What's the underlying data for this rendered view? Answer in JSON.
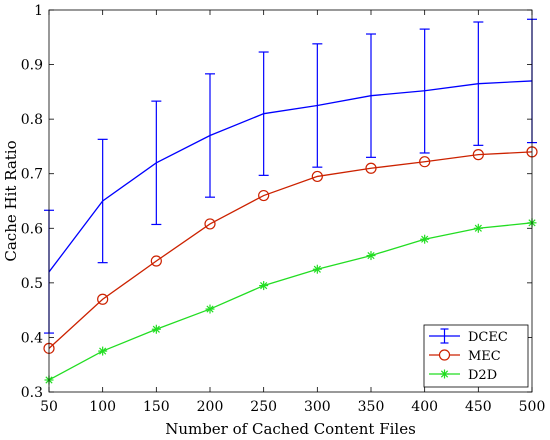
{
  "chart_data": {
    "type": "line",
    "xlabel": "Number of Cached Content Files",
    "ylabel": "Cache Hit Ratio",
    "x": [
      50,
      100,
      150,
      200,
      250,
      300,
      350,
      400,
      450,
      500
    ],
    "xlim": [
      50,
      500
    ],
    "ylim": [
      0.3,
      1.0
    ],
    "xticks": [
      "50",
      "100",
      "150",
      "200",
      "250",
      "300",
      "350",
      "400",
      "450",
      "500"
    ],
    "yticks": [
      "0.3",
      "0.4",
      "0.5",
      "0.6",
      "0.7",
      "0.8",
      "0.9",
      "1"
    ],
    "grid": false,
    "legend_position": "bottom-right",
    "series": [
      {
        "name": "DCEC",
        "color": "#0000ff",
        "marker": "errorbar",
        "values": [
          0.52,
          0.65,
          0.72,
          0.77,
          0.81,
          0.825,
          0.843,
          0.852,
          0.865,
          0.87
        ],
        "err_low": [
          0.408,
          0.537,
          0.607,
          0.657,
          0.697,
          0.712,
          0.73,
          0.738,
          0.752,
          0.757
        ],
        "err_high": [
          0.633,
          0.763,
          0.833,
          0.883,
          0.923,
          0.938,
          0.956,
          0.965,
          0.978,
          0.983
        ]
      },
      {
        "name": "MEC",
        "color": "#cc2200",
        "marker": "circle",
        "values": [
          0.38,
          0.47,
          0.54,
          0.608,
          0.66,
          0.695,
          0.71,
          0.722,
          0.735,
          0.74
        ]
      },
      {
        "name": "D2D",
        "color": "#22dd22",
        "marker": "asterisk",
        "values": [
          0.322,
          0.375,
          0.415,
          0.452,
          0.495,
          0.525,
          0.55,
          0.58,
          0.6,
          0.61
        ]
      }
    ]
  }
}
